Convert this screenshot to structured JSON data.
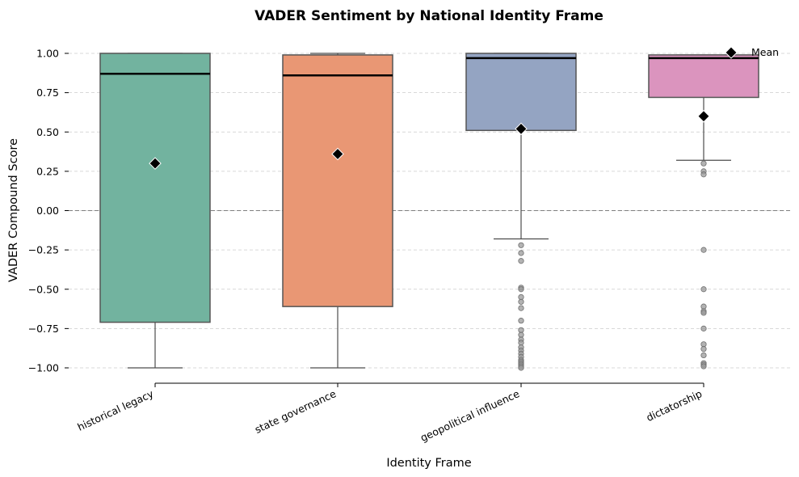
{
  "chart_data": {
    "type": "box",
    "title": "VADER Sentiment by National Identity Frame",
    "xlabel": "Identity Frame",
    "ylabel": "VADER Compound Score",
    "ylim": [
      -1.08,
      1.0
    ],
    "yticks": [
      1.0,
      0.75,
      0.5,
      0.25,
      0.0,
      -0.25,
      -0.5,
      -0.75,
      -1.0
    ],
    "ytick_labels": [
      "1.00",
      "0.75",
      "0.50",
      "0.25",
      "0.00",
      "−0.25",
      "−0.50",
      "−0.75",
      "−1.00"
    ],
    "grid": "y-dashed",
    "zero_line": 0.0,
    "legend": {
      "label": "Mean",
      "position": "top-right"
    },
    "categories": [
      "historical legacy",
      "state governance",
      "geopolitical influence",
      "dictatorship"
    ],
    "boxes": [
      {
        "name": "historical legacy",
        "color": "#72b39f",
        "q1": -0.71,
        "median": 0.87,
        "q3": 1.0,
        "whisker_low": -1.0,
        "whisker_high": 1.0,
        "mean": 0.3,
        "outliers": []
      },
      {
        "name": "state governance",
        "color": "#e99774",
        "q1": -0.61,
        "median": 0.86,
        "q3": 0.99,
        "whisker_low": -1.0,
        "whisker_high": 1.0,
        "mean": 0.36,
        "outliers": []
      },
      {
        "name": "geopolitical influence",
        "color": "#94a4c2",
        "q1": 0.51,
        "median": 0.97,
        "q3": 1.0,
        "whisker_low": -0.18,
        "whisker_high": 1.0,
        "mean": 0.52,
        "outliers": [
          -0.22,
          -0.27,
          -0.32,
          -0.49,
          -0.5,
          -0.55,
          -0.58,
          -0.62,
          -0.7,
          -0.76,
          -0.79,
          -0.82,
          -0.84,
          -0.87,
          -0.89,
          -0.91,
          -0.93,
          -0.95,
          -0.96,
          -0.97,
          -0.98,
          -0.99,
          -1.0
        ]
      },
      {
        "name": "dictatorship",
        "color": "#db94be",
        "q1": 0.72,
        "median": 0.97,
        "q3": 0.99,
        "whisker_low": 0.32,
        "whisker_high": 0.99,
        "mean": 0.6,
        "outliers": [
          0.3,
          0.25,
          0.23,
          -0.25,
          -0.5,
          -0.61,
          -0.64,
          -0.65,
          -0.75,
          -0.85,
          -0.88,
          -0.92,
          -0.97,
          -0.98,
          -0.99
        ]
      }
    ]
  }
}
